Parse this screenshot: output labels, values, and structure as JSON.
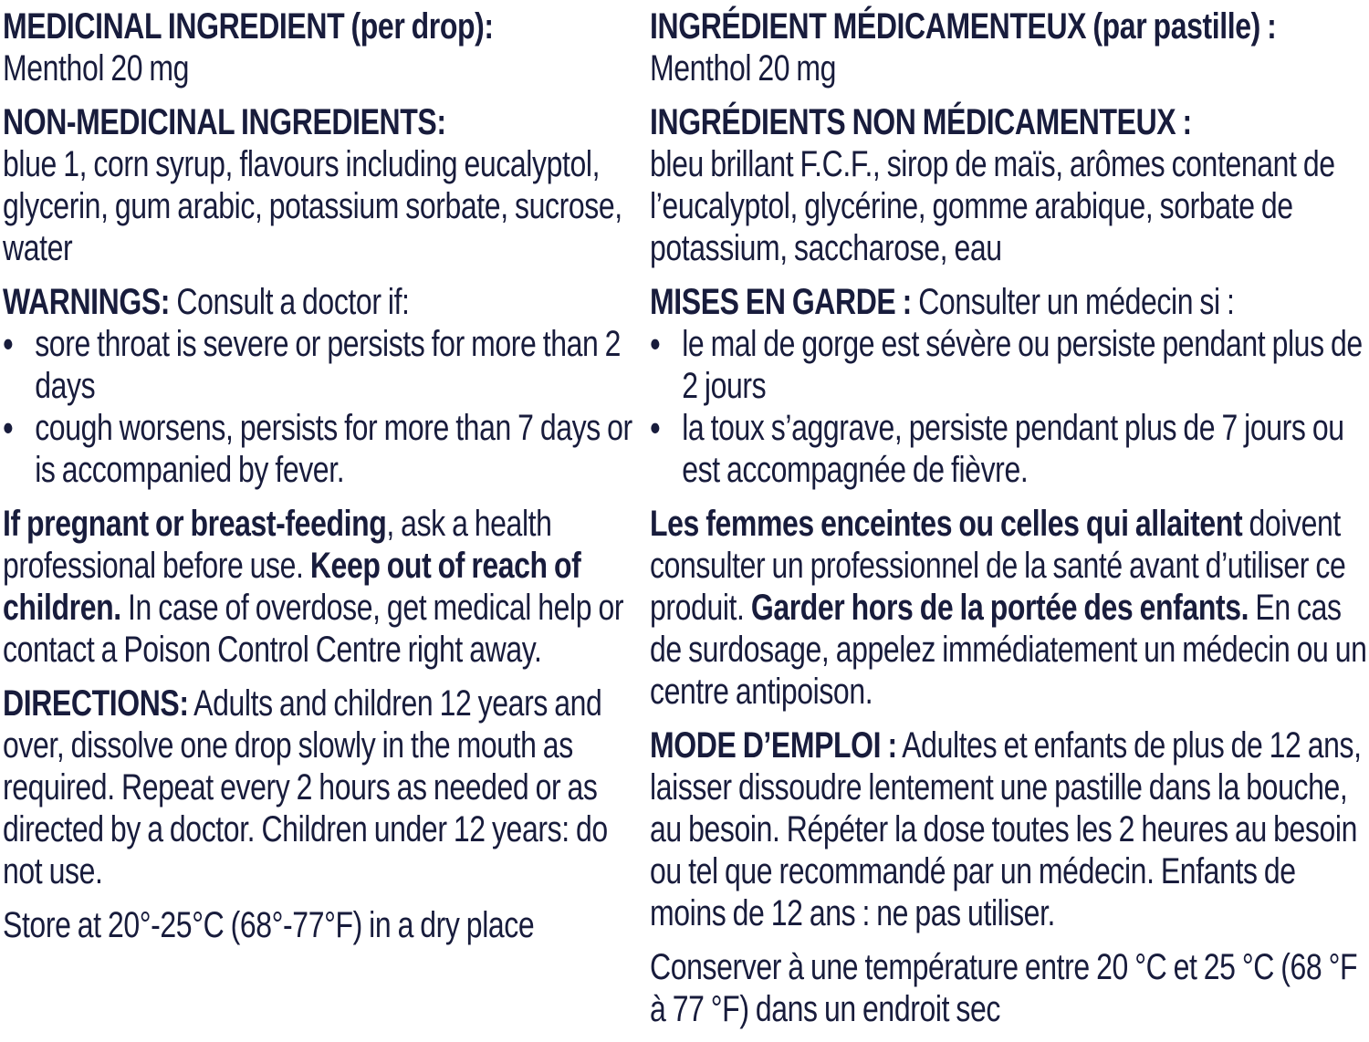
{
  "page": {
    "background_color": "#ffffff",
    "text_color": "#181c3c",
    "bullet_glyph": "•"
  },
  "label": {
    "columns": [
      {
        "language": "english",
        "blocks": [
          {
            "type": "heading",
            "segments": [
              {
                "t": "MEDICINAL INGREDIENT (per drop):",
                "b": true
              }
            ]
          },
          {
            "type": "para",
            "segments": [
              {
                "t": "Menthol 20 mg",
                "b": false
              }
            ]
          },
          {
            "type": "heading",
            "segments": [
              {
                "t": "NON-MEDICINAL INGREDIENTS:",
                "b": true
              }
            ]
          },
          {
            "type": "para",
            "segments": [
              {
                "t": "blue 1, corn syrup, flavours including eucalyptol, glycerin, gum arabic, potassium sorbate, sucrose, water",
                "b": false
              }
            ]
          },
          {
            "type": "lead",
            "segments": [
              {
                "t": "WARNINGS:",
                "b": true
              },
              {
                "t": " Consult a doctor if:",
                "b": false
              }
            ]
          },
          {
            "type": "bullets",
            "items": [
              "sore throat is severe or persists for more than 2 days",
              "cough worsens, persists for more than 7 days or is accompanied by fever."
            ]
          },
          {
            "type": "para",
            "segments": [
              {
                "t": "If pregnant or breast-feeding",
                "b": true
              },
              {
                "t": ", ask a health professional before use. ",
                "b": false
              },
              {
                "t": "Keep out of reach of children.",
                "b": true
              },
              {
                "t": " In case of overdose, get medical help or contact a Poison Control Centre right away.",
                "b": false
              }
            ]
          },
          {
            "type": "para",
            "segments": [
              {
                "t": "DIRECTIONS:",
                "b": true
              },
              {
                "t": " Adults and children 12 years and over, dissolve one drop slowly in the mouth as required. Repeat every 2 hours as needed or as directed by a doctor. Children under 12 years: do not use.",
                "b": false
              }
            ]
          },
          {
            "type": "para",
            "segments": [
              {
                "t": "Store at 20°-25°C (68°-77°F) in a dry place",
                "b": false
              }
            ]
          }
        ]
      },
      {
        "language": "french",
        "blocks": [
          {
            "type": "heading",
            "segments": [
              {
                "t": "INGRÉDIENT MÉDICAMENTEUX (par pastille) :",
                "b": true
              }
            ]
          },
          {
            "type": "para",
            "segments": [
              {
                "t": "Menthol 20 mg",
                "b": false
              }
            ]
          },
          {
            "type": "heading",
            "segments": [
              {
                "t": "INGRÉDIENTS NON MÉDICAMENTEUX :",
                "b": true
              }
            ]
          },
          {
            "type": "para",
            "segments": [
              {
                "t": "bleu brillant F.C.F., sirop de maïs, arômes contenant de l’eucalyptol, glycérine, gomme arabique, sorbate de potassium, saccharose, eau",
                "b": false
              }
            ]
          },
          {
            "type": "lead",
            "segments": [
              {
                "t": "MISES EN GARDE :",
                "b": true
              },
              {
                "t": " Consulter un médecin si :",
                "b": false
              }
            ]
          },
          {
            "type": "bullets",
            "items": [
              "le mal de gorge est sévère ou persiste pendant plus de 2 jours",
              "la toux s’aggrave, persiste pendant plus de 7 jours ou est accompagnée de fièvre."
            ]
          },
          {
            "type": "para",
            "segments": [
              {
                "t": "Les femmes enceintes ou celles qui allaitent",
                "b": true
              },
              {
                "t": " doivent consulter un professionnel de la santé avant d’utiliser ce produit. ",
                "b": false
              },
              {
                "t": "Garder hors de la portée des enfants.",
                "b": true
              },
              {
                "t": " En cas de surdosage, appelez immédiatement un médecin ou un centre antipoison.",
                "b": false
              }
            ]
          },
          {
            "type": "para",
            "segments": [
              {
                "t": "MODE D’EMPLOI :",
                "b": true
              },
              {
                "t": " Adultes et enfants de plus de 12 ans, laisser dissoudre lentement une pastille dans la bouche, au besoin. Répéter la dose toutes les 2 heures au besoin ou tel que recommandé par un médecin. Enfants de moins de 12 ans : ne pas utiliser.",
                "b": false
              }
            ]
          },
          {
            "type": "para",
            "segments": [
              {
                "t": "Conserver à une température entre 20 °C et 25 °C (68 °F à 77 °F) dans un endroit sec",
                "b": false
              }
            ]
          }
        ]
      }
    ]
  }
}
